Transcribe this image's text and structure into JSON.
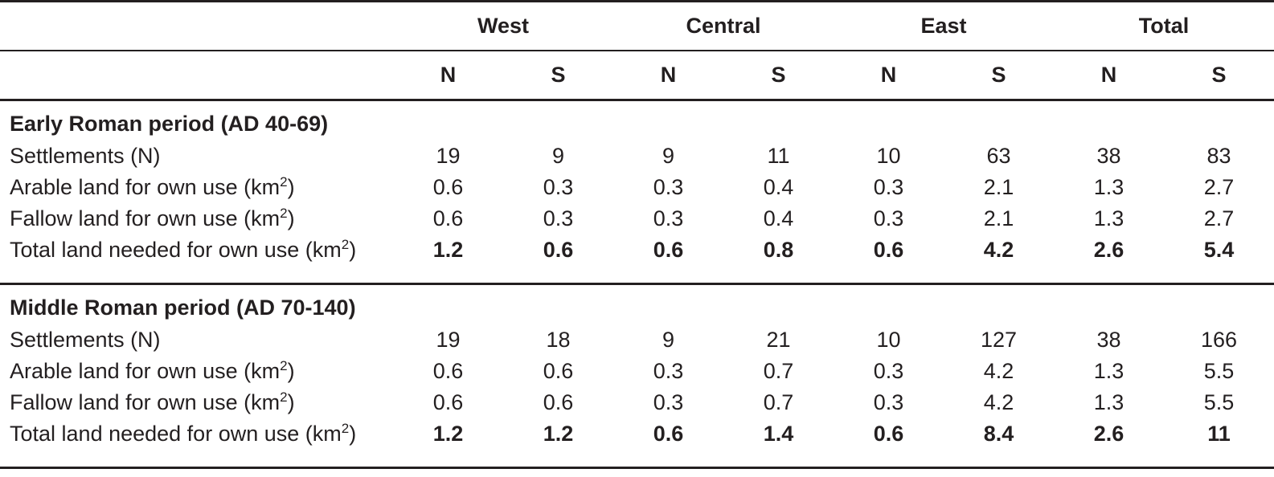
{
  "chart_data": {
    "type": "table",
    "stub_header": "",
    "column_groups": [
      {
        "label": "West",
        "sub_columns": [
          "N",
          "S"
        ]
      },
      {
        "label": "Central",
        "sub_columns": [
          "N",
          "S"
        ]
      },
      {
        "label": "East",
        "sub_columns": [
          "N",
          "S"
        ]
      },
      {
        "label": "Total",
        "sub_columns": [
          "N",
          "S"
        ]
      }
    ],
    "sections": [
      {
        "title": "Early Roman period (AD 40-69)",
        "rows": [
          {
            "label": "Settlements (N)",
            "bold_values": false,
            "values": [
              "19",
              "9",
              "9",
              "11",
              "10",
              "63",
              "38",
              "83"
            ]
          },
          {
            "label": "Arable land for own use (km²)",
            "bold_values": false,
            "values": [
              "0.6",
              "0.3",
              "0.3",
              "0.4",
              "0.3",
              "2.1",
              "1.3",
              "2.7"
            ]
          },
          {
            "label": "Fallow land for own use (km²)",
            "bold_values": false,
            "values": [
              "0.6",
              "0.3",
              "0.3",
              "0.4",
              "0.3",
              "2.1",
              "1.3",
              "2.7"
            ]
          },
          {
            "label": "Total land needed for own use (km²)",
            "bold_values": true,
            "values": [
              "1.2",
              "0.6",
              "0.6",
              "0.8",
              "0.6",
              "4.2",
              "2.6",
              "5.4"
            ]
          }
        ]
      },
      {
        "title": "Middle Roman period (AD 70-140)",
        "rows": [
          {
            "label": "Settlements (N)",
            "bold_values": false,
            "values": [
              "19",
              "18",
              "9",
              "21",
              "10",
              "127",
              "38",
              "166"
            ]
          },
          {
            "label": "Arable land for own use (km²)",
            "bold_values": false,
            "values": [
              "0.6",
              "0.6",
              "0.3",
              "0.7",
              "0.3",
              "4.2",
              "1.3",
              "5.5"
            ]
          },
          {
            "label": "Fallow land for own use (km²)",
            "bold_values": false,
            "values": [
              "0.6",
              "0.6",
              "0.3",
              "0.7",
              "0.3",
              "4.2",
              "1.3",
              "5.5"
            ]
          },
          {
            "label": "Total land needed for own use (km²)",
            "bold_values": true,
            "values": [
              "1.2",
              "1.2",
              "0.6",
              "1.4",
              "0.6",
              "8.4",
              "2.6",
              "11"
            ]
          }
        ]
      }
    ],
    "layout": {
      "grid": "horizontal-rules-only",
      "value_alignment": "center",
      "label_alignment": "left",
      "legend": "none"
    },
    "colors": {
      "text": "#231f20",
      "rules": "#231f20",
      "background": "#ffffff"
    }
  }
}
